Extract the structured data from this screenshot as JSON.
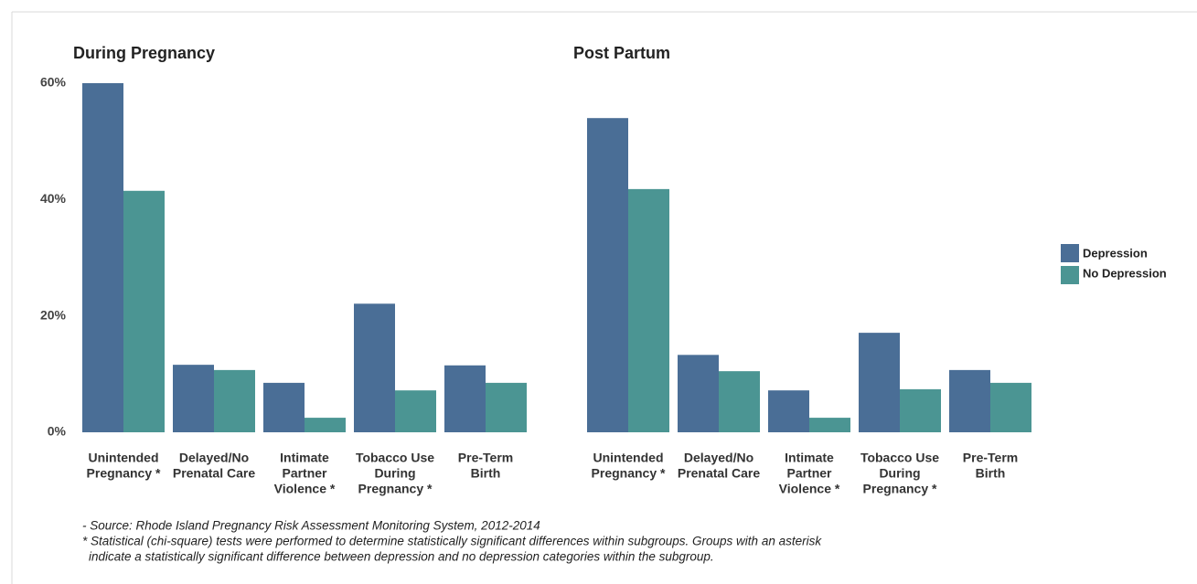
{
  "chart_data": {
    "type": "bar",
    "ylim": [
      0,
      60
    ],
    "yticks": [
      {
        "value": 0,
        "label": "0%"
      },
      {
        "value": 20,
        "label": "20%"
      },
      {
        "value": 40,
        "label": "40%"
      },
      {
        "value": 60,
        "label": "60%"
      }
    ],
    "series": [
      {
        "name": "Depression",
        "color": "#4a6e96"
      },
      {
        "name": "No Depression",
        "color": "#4b9593"
      }
    ],
    "panels": [
      {
        "title": "During Pregnancy",
        "categories": [
          [
            "Unintended",
            "Pregnancy *"
          ],
          [
            "Delayed/No",
            "Prenatal Care"
          ],
          [
            "Intimate",
            "Partner",
            "Violence *"
          ],
          [
            "Tobacco Use",
            "During",
            "Pregnancy *"
          ],
          [
            "Pre-Term",
            "Birth"
          ]
        ],
        "values": [
          [
            60,
            11.6,
            8.5,
            22.1,
            11.5
          ],
          [
            41.5,
            10.7,
            2.5,
            7.2,
            8.5
          ]
        ]
      },
      {
        "title": "Post Partum",
        "categories": [
          [
            "Unintended",
            "Pregnancy *"
          ],
          [
            "Delayed/No",
            "Prenatal Care"
          ],
          [
            "Intimate",
            "Partner",
            "Violence *"
          ],
          [
            "Tobacco Use",
            "During",
            "Pregnancy *"
          ],
          [
            "Pre-Term",
            "Birth"
          ]
        ],
        "values": [
          [
            54,
            13.3,
            7.2,
            17.1,
            10.7
          ],
          [
            41.8,
            10.5,
            2.5,
            7.4,
            8.5
          ]
        ]
      }
    ]
  },
  "footnotes": [
    "- Source: Rhode Island Pregnancy Risk Assessment Monitoring System, 2012-2014",
    "* Statistical (chi-square) tests were performed to determine statistically significant differences within subgroups. Groups with an asterisk",
    "indicate a statistically significant difference between depression and no depression categories within the subgroup."
  ]
}
